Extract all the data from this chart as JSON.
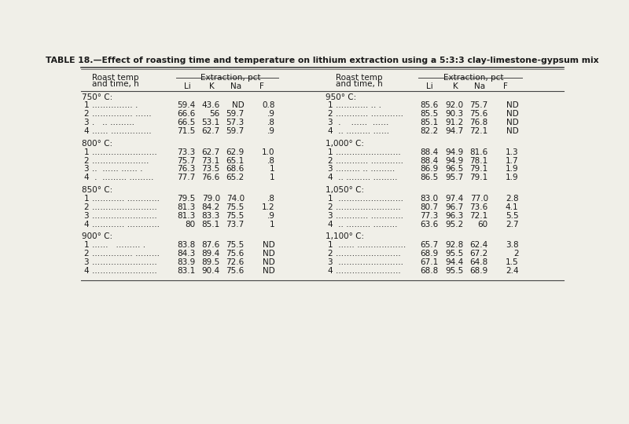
{
  "title": "TABLE 18.—Effect of roasting time and temperature on lithium extraction using a 5:3:3 clay-limestone-gypsum mix",
  "extraction_label": "Extraction, pct",
  "bg_color": "#f0efe8",
  "text_color": "#1a1a1a",
  "line_color": "#444444",
  "sections_left": [
    {
      "header": "750° C:",
      "rows": [
        [
          "1 …………… .",
          "59.4",
          "43.6",
          "ND",
          "0.8"
        ],
        [
          "2 …………… ……",
          "66.6",
          "56",
          "59.7",
          ".9"
        ],
        [
          "3 .   .. ………",
          "66.5",
          "53.1",
          "57.3",
          ".8"
        ],
        [
          "4 …… ……………",
          "71.5",
          "62.7",
          "59.7",
          ".9"
        ]
      ]
    },
    {
      "header": "800° C:",
      "rows": [
        [
          "1 ……………………",
          "73.3",
          "62.7",
          "62.9",
          "1.0"
        ],
        [
          "2 …………………",
          "75.7",
          "73.1",
          "65.1",
          ".8"
        ],
        [
          "3 ..  …… …… .",
          "76.3",
          "73.5",
          "68.6",
          "1"
        ],
        [
          "4  .  ……… ………",
          "77.7",
          "76.6",
          "65.2",
          "1"
        ]
      ]
    },
    {
      "header": "850° C:",
      "rows": [
        [
          "1 ………… …………",
          "79.5",
          "79.0",
          "74.0",
          ".8"
        ],
        [
          "2 ……………………",
          "81.3",
          "84.2",
          "75.5",
          "1.2"
        ],
        [
          "3 ……………………",
          "81.3",
          "83.3",
          "75.5",
          ".9"
        ],
        [
          "4 ………… …………",
          "80",
          "85.1",
          "73.7",
          "1"
        ]
      ]
    },
    {
      "header": "900° C:",
      "rows": [
        [
          "1 ……   ……… .",
          "83.8",
          "87.6",
          "75.5",
          "ND"
        ],
        [
          "2 …………… ………",
          "84.3",
          "89.4",
          "75.6",
          "ND"
        ],
        [
          "3 ……………………",
          "83.9",
          "89.5",
          "72.6",
          "ND"
        ],
        [
          "4 ……………………",
          "83.1",
          "90.4",
          "75.6",
          "ND"
        ]
      ]
    }
  ],
  "sections_right": [
    {
      "header": "950° C:",
      "rows": [
        [
          "1 ………… .. .",
          "85.6",
          "92.0",
          "75.7",
          "ND"
        ],
        [
          "2 ………… …………",
          "85.5",
          "90.3",
          "75.6",
          "ND"
        ],
        [
          "3  .    ……  ……",
          "85.1",
          "91.2",
          "76.8",
          "ND"
        ],
        [
          "4  .. ……… ……",
          "82.2",
          "94.7",
          "72.1",
          "ND"
        ]
      ]
    },
    {
      "header": "1,000° C:",
      "rows": [
        [
          "1 ……………………",
          "88.4",
          "94.9",
          "81.6",
          "1.3"
        ],
        [
          "2 ………… …………",
          "88.4",
          "94.9",
          "78.1",
          "1.7"
        ],
        [
          "3 ……… .. ………",
          "86.9",
          "96.5",
          "79.1",
          "1.9"
        ],
        [
          "4  .. ……… ………",
          "86.5",
          "95.7",
          "79.1",
          "1.9"
        ]
      ]
    },
    {
      "header": "1,050° C:",
      "rows": [
        [
          "1  ……………………",
          "83.0",
          "97.4",
          "77.0",
          "2.8"
        ],
        [
          "2 ……………………",
          "80.7",
          "96.7",
          "73.6",
          "4.1"
        ],
        [
          "3 ………… …………",
          "77.3",
          "96.3",
          "72.1",
          "5.5"
        ],
        [
          "4  .. ……… ………",
          "63.6",
          "95.2",
          "60",
          "2.7"
        ]
      ]
    },
    {
      "header": "1,100° C:",
      "rows": [
        [
          "1  …… ………………",
          "65.7",
          "92.8",
          "62.4",
          "3.8"
        ],
        [
          "2 ……………………",
          "68.9",
          "95.5",
          "67.2",
          "2"
        ],
        [
          "3  ……………………",
          "67.1",
          "94.4",
          "64.8",
          "1.5"
        ],
        [
          "4 ……………………",
          "68.8",
          "95.5",
          "68.9",
          "2.4"
        ]
      ]
    }
  ]
}
